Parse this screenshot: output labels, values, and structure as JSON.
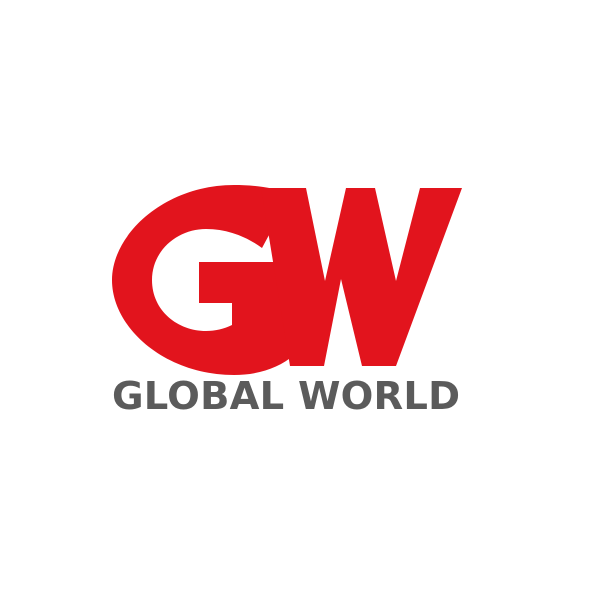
{
  "brand": {
    "monogram": "GW",
    "name": "GLOBAL WORLD",
    "colors": {
      "red": "#e2141d",
      "gray": "#5b5b5b",
      "background": "#ffffff"
    }
  },
  "icons": [
    "gw-monogram-logo"
  ]
}
